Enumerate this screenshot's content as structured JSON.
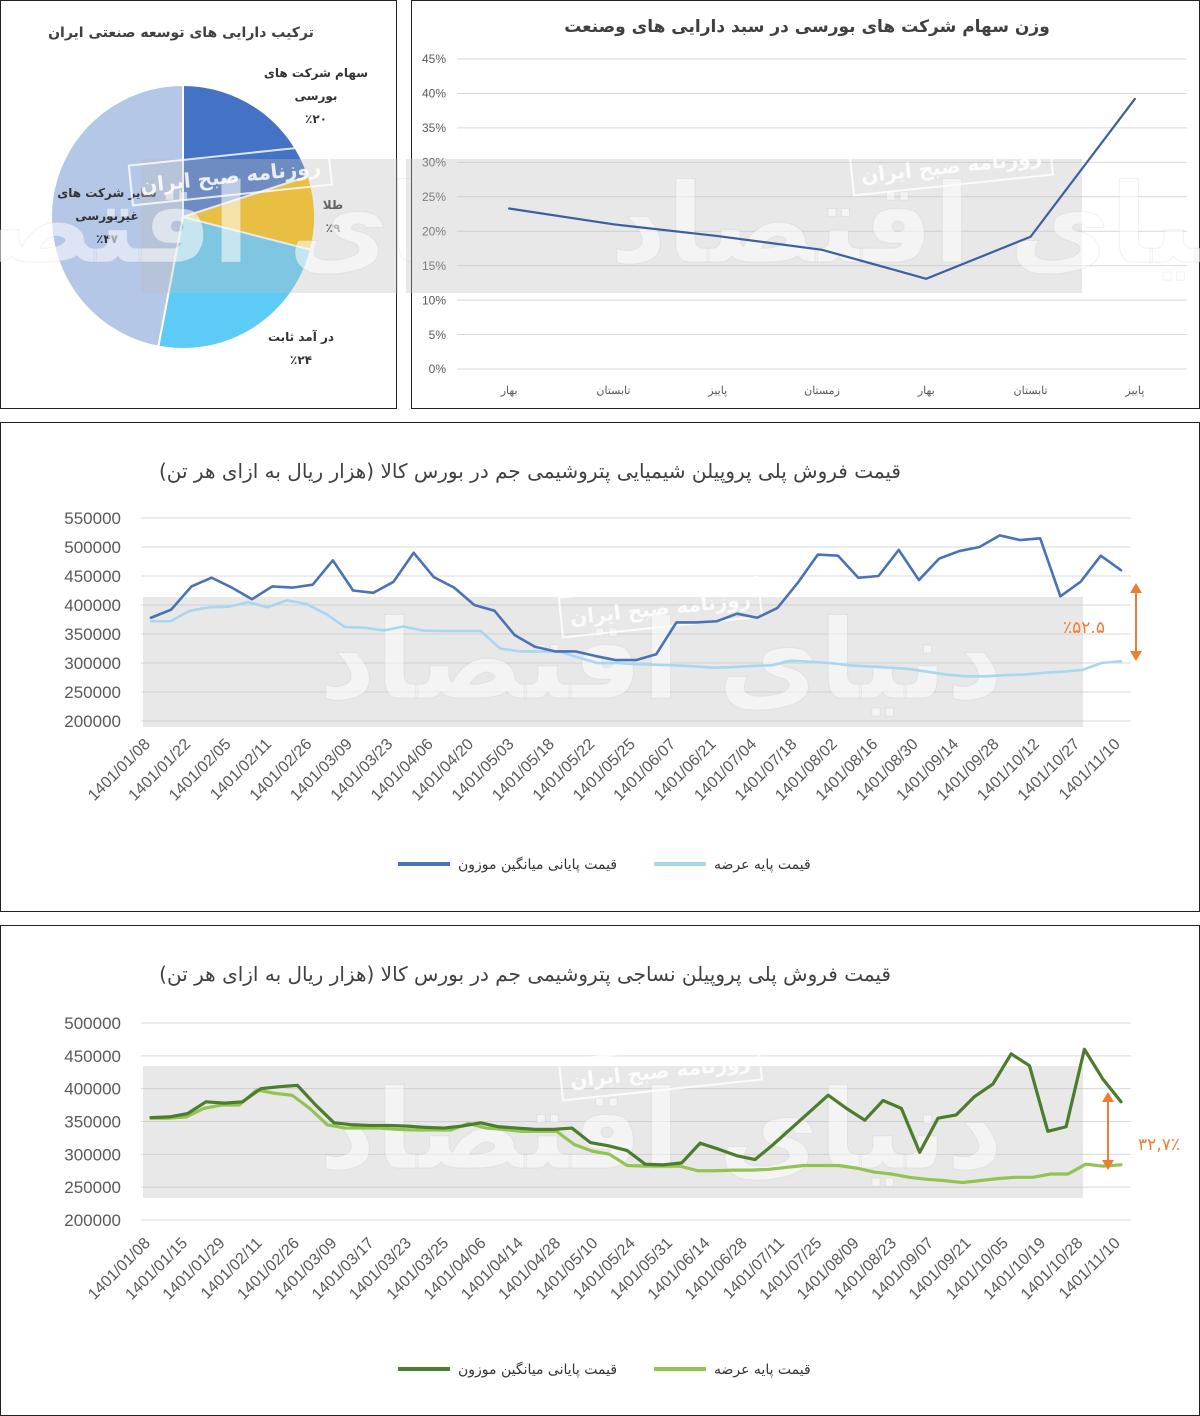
{
  "charts": {
    "pie": {
      "title": "ترکیب دارایی های توسعه صنعتی ایران",
      "type": "pie",
      "slices": [
        {
          "label_lines": [
            "سهام شرکت های",
            "بورسی",
            "٪۲۰"
          ],
          "value": 20,
          "color": "#4472c4"
        },
        {
          "label_lines": [
            "طلا",
            "٪۹"
          ],
          "value": 9,
          "color": "#ffc000"
        },
        {
          "label_lines": [
            "در آمد ثابت",
            "٪۲۴"
          ],
          "value": 24,
          "color": "#5ccbf5"
        },
        {
          "label_lines": [
            "سایر شرکت های",
            "غیربورسی",
            "٪۴۷"
          ],
          "value": 47,
          "color": "#b4c7e7"
        }
      ]
    },
    "weight": {
      "title": "وزن سهام شرکت های بورسی در سبد دارایی های وصنعت",
      "type": "line",
      "yticks": [
        "0%",
        "5%",
        "10%",
        "15%",
        "20%",
        "25%",
        "30%",
        "35%",
        "40%",
        "45%"
      ],
      "ylim": [
        0,
        45
      ],
      "categories": [
        "بهار",
        "تابستان",
        "پاییز",
        "زمستان",
        "بهار",
        "تابستان",
        "پاییز"
      ],
      "series": [
        {
          "values": [
            23.3,
            21,
            19.3,
            17.3,
            13.1,
            19.2,
            39.2
          ],
          "color": "#3c5fa0"
        }
      ]
    },
    "chem": {
      "title": "قیمت فروش پلی پروپیلن شیمیایی پتروشیمی جم در بورس کالا (هزار ریال به ازای هر تن)",
      "type": "line",
      "yticks": [
        "200000",
        "250000",
        "300000",
        "350000",
        "400000",
        "450000",
        "500000",
        "550000"
      ],
      "ylim": [
        200000,
        550000
      ],
      "xlabels": [
        "1401/01/08",
        "1401/01/22",
        "1401/02/05",
        "1401/02/11",
        "1401/02/26",
        "1401/03/09",
        "1401/03/23",
        "1401/04/06",
        "1401/04/20",
        "1401/05/03",
        "1401/05/18",
        "1401/05/22",
        "1401/05/25",
        "1401/06/07",
        "1401/06/21",
        "1401/07/04",
        "1401/07/18",
        "1401/08/02",
        "1401/08/16",
        "1401/08/30",
        "1401/09/14",
        "1401/09/28",
        "1401/10/12",
        "1401/10/27",
        "1401/11/10"
      ],
      "annotation": "٪۵۲.۵",
      "annotation_color": "#ed7d31",
      "series": [
        {
          "name": "قیمت پایانی میانگین موزون",
          "color": "#4a72b4",
          "values": [
            378000,
            392000,
            432000,
            447000,
            430000,
            410000,
            432000,
            430000,
            435000,
            477000,
            425000,
            421000,
            440000,
            490000,
            448000,
            430000,
            400000,
            390000,
            348000,
            328000,
            320000,
            320000,
            312000,
            305000,
            305000,
            315000,
            370000,
            370000,
            372000,
            385000,
            378000,
            395000,
            438000,
            487000,
            485000,
            447000,
            450000,
            495000,
            443000,
            480000,
            493000,
            500000,
            520000,
            512000,
            515000,
            415000,
            440000,
            485000,
            460000
          ]
        },
        {
          "name": "قیمت پایه عرضه",
          "color": "#a9d6f0",
          "values": [
            372000,
            372000,
            390000,
            396000,
            397000,
            405000,
            396000,
            408000,
            402000,
            385000,
            362000,
            361000,
            356000,
            363000,
            356000,
            355000,
            355000,
            355000,
            325000,
            320000,
            320000,
            320000,
            310000,
            300000,
            300000,
            298000,
            297000,
            296000,
            294000,
            292000,
            293000,
            295000,
            296000,
            304000,
            302000,
            300000,
            296000,
            294000,
            292000,
            290000,
            285000,
            280000,
            277000,
            277000,
            279000,
            280000,
            283000,
            285000,
            288000,
            300000,
            303000
          ]
        }
      ]
    },
    "text": {
      "title": "قیمت فروش پلی پروپیلن نساجی پتروشیمی جم در بورس کالا  (هزار ریال به ازای هر تن)",
      "type": "line",
      "yticks": [
        "200000",
        "250000",
        "300000",
        "350000",
        "400000",
        "450000",
        "500000"
      ],
      "ylim": [
        200000,
        500000
      ],
      "xlabels": [
        "1401/01/08",
        "1401/01/15",
        "1401/01/29",
        "1401/02/11",
        "1401/02/26",
        "1401/03/09",
        "1401/03/17",
        "1401/03/23",
        "1401/03/25",
        "1401/04/06",
        "1401/04/14",
        "1401/04/28",
        "1401/05/10",
        "1401/05/24",
        "1401/05/31",
        "1401/06/14",
        "1401/06/28",
        "1401/07/11",
        "1401/07/25",
        "1401/08/09",
        "1401/08/23",
        "1401/09/07",
        "1401/09/21",
        "1401/10/05",
        "1401/10/19",
        "1401/10/28",
        "1401/11/10"
      ],
      "annotation": "٣٢,٧٪",
      "annotation_color": "#ed7d31",
      "series": [
        {
          "name": "قیمت پایانی میانگین موزون",
          "color": "#4c7d2c",
          "values": [
            356000,
            357000,
            362000,
            380000,
            378000,
            380000,
            400000,
            403000,
            405000,
            375000,
            348000,
            345000,
            344000,
            344000,
            343000,
            341000,
            340000,
            343000,
            348000,
            342000,
            340000,
            338000,
            338000,
            340000,
            318000,
            313000,
            306000,
            285000,
            284000,
            287000,
            317000,
            308000,
            298000,
            292000,
            315000,
            340000,
            365000,
            390000,
            370000,
            352000,
            382000,
            370000,
            303000,
            355000,
            360000,
            388000,
            407000,
            453000,
            435000,
            335000,
            342000,
            460000,
            415000,
            380000
          ]
        },
        {
          "name": "قیمت پایه عرضه",
          "color": "#92c353",
          "values": [
            355000,
            355000,
            357000,
            370000,
            375000,
            375000,
            398000,
            393000,
            390000,
            370000,
            345000,
            340000,
            340000,
            340000,
            338000,
            337000,
            337000,
            337000,
            347000,
            340000,
            338000,
            335000,
            335000,
            335000,
            315000,
            305000,
            300000,
            283000,
            282000,
            282000,
            282000,
            275000,
            275000,
            276000,
            276000,
            277000,
            280000,
            283000,
            283000,
            283000,
            279000,
            273000,
            270000,
            265000,
            262000,
            260000,
            257000,
            260000,
            263000,
            265000,
            265000,
            270000,
            270000,
            285000,
            282000,
            284000
          ]
        }
      ]
    }
  },
  "watermark": {
    "brand": "دنیای اقتصاد",
    "badge": "روزنامه صبح ایران"
  }
}
